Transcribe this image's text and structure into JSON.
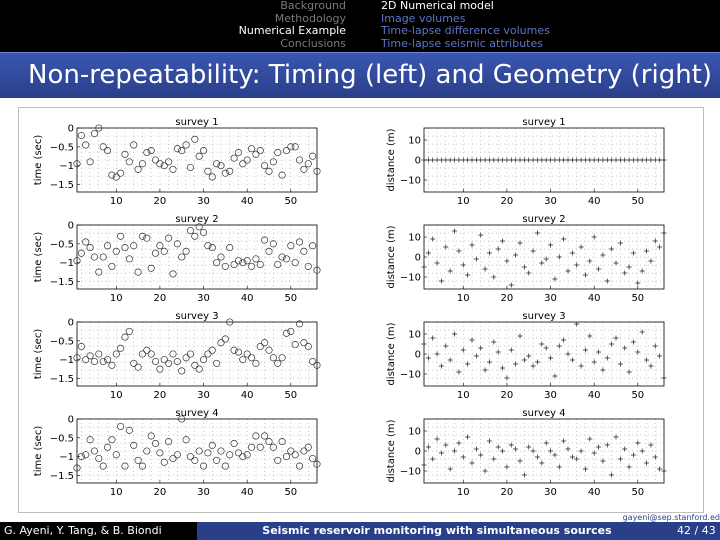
{
  "nav": {
    "sections": [
      "Background",
      "Methodology",
      "Numerical Example",
      "Conclusions"
    ],
    "active_section": 2,
    "subsections": [
      "2D Numerical model",
      "Image volumes",
      "Time-lapse difference volumes",
      "Time-lapse seismic attributes"
    ],
    "active_subsection": 0
  },
  "title": "Non-repeatability: Timing (left) and Geometry (right)",
  "email": "gayeni@sep.stanford.ed",
  "footer": {
    "authors": "G. Ayeni, Y. Tang, & B. Biondi",
    "talk_title": "Seismic reservoir monitoring with simultaneous sources",
    "page": "42 / 43"
  },
  "colors": {
    "navbar": "#000000",
    "title_band": "#2a3f8a",
    "nav_active": "#ffffff",
    "nav_inactive": "#7a7a7a",
    "nav_sub": "#5d75c8"
  },
  "chart_data": [
    {
      "type": "scatter",
      "title": "survey 1",
      "ylabel": "time (sec)",
      "xlim": [
        1,
        56
      ],
      "ylim": [
        -1.7,
        0
      ],
      "xticks": [
        10,
        20,
        30,
        40,
        50
      ],
      "yticks": [
        0,
        -0.5,
        -1,
        -1.5
      ],
      "ytick_labels": [
        "0",
        "−0.5",
        "−1",
        "−1.5"
      ],
      "marker": "circle",
      "grid": true,
      "y": [
        -0.95,
        -0.2,
        -0.45,
        -0.9,
        -0.15,
        0.0,
        -0.5,
        -0.6,
        -1.25,
        -1.3,
        -1.2,
        -0.7,
        -0.9,
        -0.45,
        -1.1,
        -0.95,
        -0.65,
        -0.6,
        -0.85,
        -0.95,
        -1.0,
        -0.9,
        -1.1,
        -0.55,
        -0.6,
        -0.45,
        -1.05,
        -0.3,
        -0.75,
        -0.6,
        -1.15,
        -1.3,
        -0.95,
        -1.0,
        -1.2,
        -1.15,
        -0.8,
        -0.65,
        -0.95,
        -0.85,
        -0.55,
        -0.7,
        -0.6,
        -1.0,
        -1.15,
        -0.9,
        -0.65,
        -1.25,
        -0.6,
        -0.5,
        -0.5,
        -0.85,
        -1.1,
        -0.95,
        -0.75,
        -1.15
      ]
    },
    {
      "type": "scatter",
      "title": "survey 2",
      "ylabel": "time (sec)",
      "xlim": [
        1,
        56
      ],
      "ylim": [
        -1.7,
        0
      ],
      "xticks": [
        10,
        20,
        30,
        40,
        50
      ],
      "yticks": [
        0,
        -0.5,
        -1,
        -1.5
      ],
      "ytick_labels": [
        "0",
        "−0.5",
        "−1",
        "−1.5"
      ],
      "marker": "circle",
      "grid": true,
      "y": [
        -0.95,
        -0.75,
        -0.45,
        -0.6,
        -0.85,
        -1.25,
        -0.85,
        -0.55,
        -1.1,
        -0.7,
        -0.3,
        -0.6,
        -0.9,
        -0.55,
        -1.25,
        -0.3,
        -0.35,
        -1.15,
        -0.75,
        -0.55,
        -0.7,
        -0.35,
        -1.3,
        -0.5,
        -0.85,
        -0.7,
        -0.15,
        -0.3,
        -0.05,
        -0.2,
        -0.55,
        -0.6,
        -1.0,
        -0.85,
        -1.1,
        -0.6,
        -1.05,
        -0.95,
        -1.0,
        -0.95,
        -1.1,
        -0.9,
        -1.05,
        -0.4,
        -0.7,
        -0.5,
        -1.05,
        -0.85,
        -0.9,
        -0.55,
        -1.0,
        -0.45,
        -0.7,
        -1.1,
        -0.55,
        -1.2
      ]
    },
    {
      "type": "scatter",
      "title": "survey 3",
      "ylabel": "time (sec)",
      "xlim": [
        1,
        56
      ],
      "ylim": [
        -1.7,
        0
      ],
      "xticks": [
        10,
        20,
        30,
        40,
        50
      ],
      "yticks": [
        0,
        -0.5,
        -1,
        -1.5
      ],
      "ytick_labels": [
        "0",
        "−0.5",
        "−1",
        "−1.5"
      ],
      "marker": "circle",
      "grid": true,
      "y": [
        -0.95,
        -0.65,
        -1.0,
        -0.9,
        -1.05,
        -0.85,
        -1.05,
        -1.0,
        -1.15,
        -0.85,
        -0.7,
        -0.4,
        -0.25,
        -1.1,
        -1.2,
        -0.85,
        -0.75,
        -0.85,
        -1.05,
        -1.25,
        -1.0,
        -1.1,
        -0.85,
        -1.05,
        -1.3,
        -0.95,
        -0.85,
        -1.15,
        -1.25,
        -1.0,
        -0.85,
        -0.75,
        -1.1,
        -0.55,
        -0.45,
        -0.0,
        -0.75,
        -0.8,
        -1.0,
        -0.85,
        -0.95,
        -1.1,
        -0.65,
        -0.55,
        -0.75,
        -0.95,
        -1.1,
        -0.95,
        -0.3,
        -0.25,
        -0.6,
        -0.05,
        -0.55,
        -0.65,
        -1.05,
        -1.15
      ]
    },
    {
      "type": "scatter",
      "title": "survey 4",
      "ylabel": "time (sec)",
      "xlim": [
        1,
        56
      ],
      "ylim": [
        -1.7,
        0
      ],
      "xticks": [
        10,
        20,
        30,
        40,
        50
      ],
      "yticks": [
        0,
        -0.5,
        -1,
        -1.5
      ],
      "ytick_labels": [
        "0",
        "−0.5",
        "−1",
        "−1.5"
      ],
      "marker": "circle",
      "grid": true,
      "y": [
        -1.3,
        -1.0,
        -0.95,
        -0.55,
        -0.85,
        -1.05,
        -1.25,
        -0.75,
        -0.55,
        -0.95,
        -0.2,
        -1.25,
        -0.3,
        -0.7,
        -1.1,
        -1.25,
        -0.85,
        -0.45,
        -0.65,
        -0.9,
        -1.15,
        -0.6,
        -1.05,
        -0.95,
        -0.0,
        -0.55,
        -1.0,
        -1.1,
        -0.85,
        -1.25,
        -0.9,
        -0.7,
        -1.1,
        -0.85,
        -1.25,
        -0.95,
        -0.65,
        -0.9,
        -1.0,
        -0.95,
        -0.75,
        -0.45,
        -0.75,
        -0.45,
        -0.6,
        -0.75,
        -1.1,
        -0.6,
        -1.0,
        -0.85,
        -0.95,
        -1.25,
        -0.85,
        -0.75,
        -1.05,
        -1.2
      ]
    },
    {
      "type": "scatter",
      "title": "survey 1",
      "ylabel": "distance (m)",
      "xlim": [
        1,
        56
      ],
      "ylim": [
        -16,
        16
      ],
      "xticks": [
        10,
        20,
        30,
        40,
        50
      ],
      "yticks": [
        10,
        0,
        -10
      ],
      "ytick_labels": [
        "10",
        "0",
        "−10"
      ],
      "marker": "plus",
      "grid": true,
      "y": [
        0,
        0,
        0,
        0,
        0,
        0,
        0,
        0,
        0,
        0,
        0,
        0,
        0,
        0,
        0,
        0,
        0,
        0,
        0,
        0,
        0,
        0,
        0,
        0,
        0,
        0,
        0,
        0,
        0,
        0,
        0,
        0,
        0,
        0,
        0,
        0,
        0,
        0,
        0,
        0,
        0,
        0,
        0,
        0,
        0,
        0,
        0,
        0,
        0,
        0,
        0,
        0,
        0,
        0,
        0,
        0
      ]
    },
    {
      "type": "scatter",
      "title": "survey 2",
      "ylabel": "distance (m)",
      "xlim": [
        1,
        56
      ],
      "ylim": [
        -16,
        16
      ],
      "xticks": [
        10,
        20,
        30,
        40,
        50
      ],
      "yticks": [
        10,
        0,
        -10
      ],
      "ytick_labels": [
        "10",
        "0",
        "−10"
      ],
      "marker": "plus",
      "grid": true,
      "y": [
        -5,
        2,
        9,
        -3,
        -12,
        5,
        -7,
        13,
        3,
        -4,
        -9,
        6,
        -1,
        11,
        -6,
        2,
        -10,
        4,
        8,
        -2,
        -14,
        1,
        7,
        -5,
        -8,
        3,
        12,
        -3,
        -1,
        6,
        -11,
        0,
        9,
        -7,
        2,
        -4,
        5,
        -9,
        -2,
        10,
        -6,
        1,
        -12,
        4,
        -3,
        7,
        -8,
        -5,
        2,
        -13,
        -7,
        3,
        -2,
        8,
        5,
        12
      ]
    },
    {
      "type": "scatter",
      "title": "survey 3",
      "ylabel": "distance (m)",
      "xlim": [
        1,
        56
      ],
      "ylim": [
        -16,
        16
      ],
      "xticks": [
        10,
        20,
        30,
        40,
        50
      ],
      "yticks": [
        10,
        0,
        -10
      ],
      "ytick_labels": [
        "10",
        "0",
        "−10"
      ],
      "marker": "plus",
      "grid": true,
      "y": [
        5,
        -2,
        8,
        0,
        -6,
        4,
        -3,
        10,
        -9,
        2,
        -5,
        7,
        -1,
        3,
        -8,
        -4,
        6,
        1,
        -7,
        -12,
        2,
        -5,
        9,
        -3,
        -1,
        -6,
        -4,
        5,
        3,
        -2,
        -11,
        4,
        7,
        0,
        -3,
        15,
        -6,
        2,
        9,
        -4,
        1,
        -8,
        -2,
        5,
        8,
        -5,
        3,
        -9,
        6,
        1,
        11,
        -3,
        -6,
        4,
        -1,
        -12
      ]
    },
    {
      "type": "scatter",
      "title": "survey 4",
      "ylabel": "distance (m)",
      "xlim": [
        1,
        56
      ],
      "ylim": [
        -16,
        16
      ],
      "xticks": [
        10,
        20,
        30,
        40,
        50
      ],
      "yticks": [
        10,
        0,
        -10
      ],
      "ytick_labels": [
        "10",
        "0",
        "−10"
      ],
      "marker": "plus",
      "grid": true,
      "y": [
        -7,
        2,
        -4,
        6,
        -1,
        3,
        -9,
        0,
        4,
        -3,
        7,
        -6,
        1,
        -2,
        -10,
        5,
        -4,
        2,
        0,
        -8,
        3,
        1,
        -5,
        -12,
        2,
        0,
        -3,
        -6,
        4,
        0,
        -2,
        -8,
        5,
        1,
        -3,
        -4,
        0,
        -9,
        6,
        -1,
        2,
        -5,
        3,
        -12,
        7,
        -4,
        1,
        -8,
        -2,
        4,
        0,
        -6,
        3,
        -3,
        -9,
        -10
      ]
    }
  ]
}
